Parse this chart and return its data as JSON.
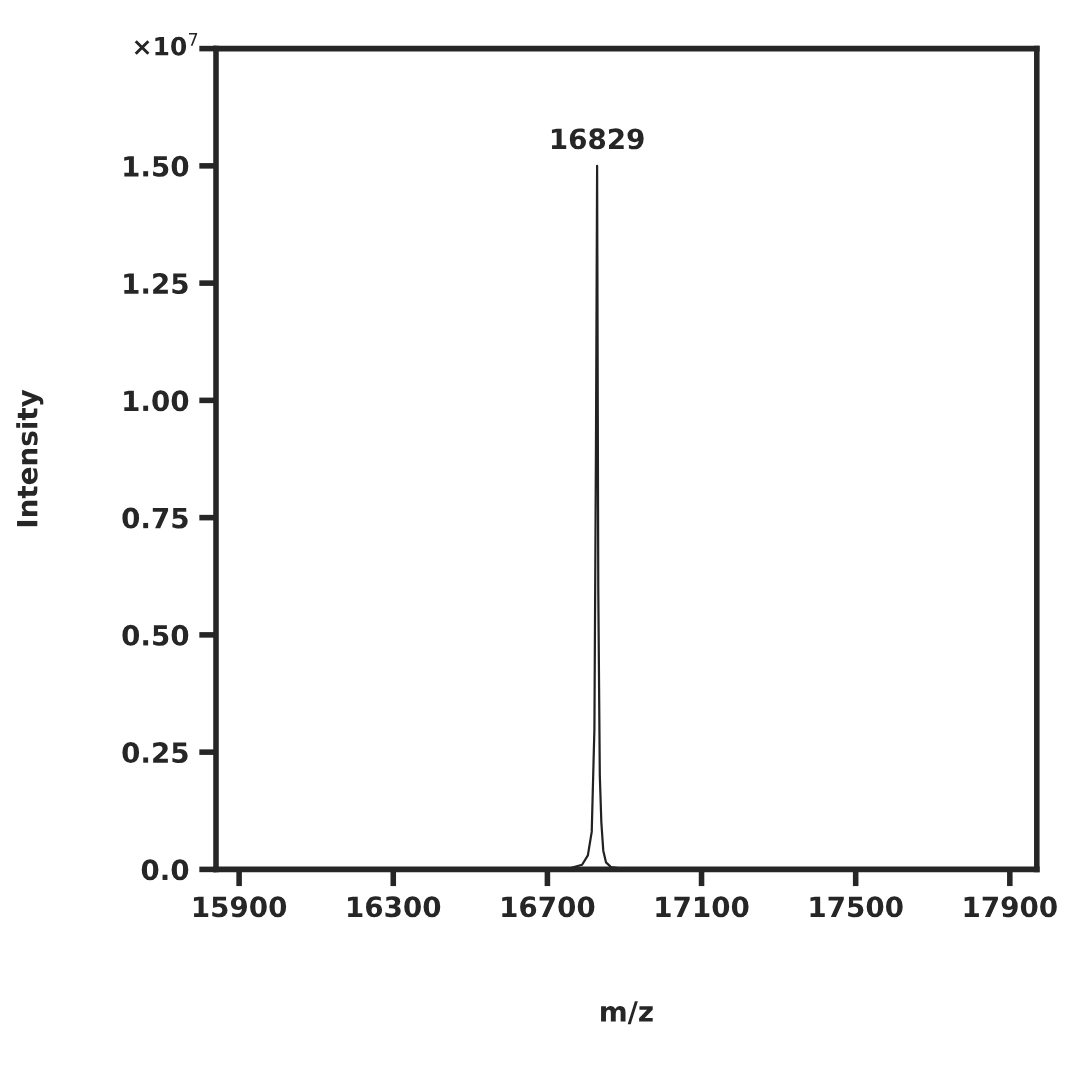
{
  "chart_data": {
    "type": "line",
    "xlabel": "m/z",
    "ylabel": "Intensity",
    "series": [
      {
        "color": "#222222",
        "x": [
          16640,
          16700,
          16760,
          16790,
          16805,
          16815,
          16822,
          16826,
          16829,
          16832,
          16836,
          16840,
          16845,
          16852,
          16865,
          16890,
          16930,
          16960
        ],
        "values": [
          0,
          0,
          0.003,
          0.01,
          0.03,
          0.08,
          0.3,
          0.9,
          1.5,
          0.6,
          0.2,
          0.1,
          0.04,
          0.015,
          0.005,
          0.002,
          0,
          0
        ]
      }
    ],
    "xlim": [
      15840,
      17970
    ],
    "xticks": [
      15900,
      16300,
      16700,
      17100,
      17500,
      17900
    ],
    "ylim": [
      0,
      1.75
    ],
    "yticks": [
      {
        "value": 0,
        "label": "0.0"
      },
      {
        "value": 0.25,
        "label": "0.25"
      },
      {
        "value": 0.5,
        "label": "0.50"
      },
      {
        "value": 0.75,
        "label": "0.75"
      },
      {
        "value": 1,
        "label": "1.00"
      },
      {
        "value": 1.25,
        "label": "1.25"
      },
      {
        "value": 1.5,
        "label": "1.50"
      },
      {
        "value": 1.75,
        "label": null
      }
    ],
    "annotations": [
      {
        "text": "16829",
        "x": 16829,
        "y": 1.5
      },
      "×10$^{7}$"
    ],
    "grid": false,
    "legend": false
  }
}
